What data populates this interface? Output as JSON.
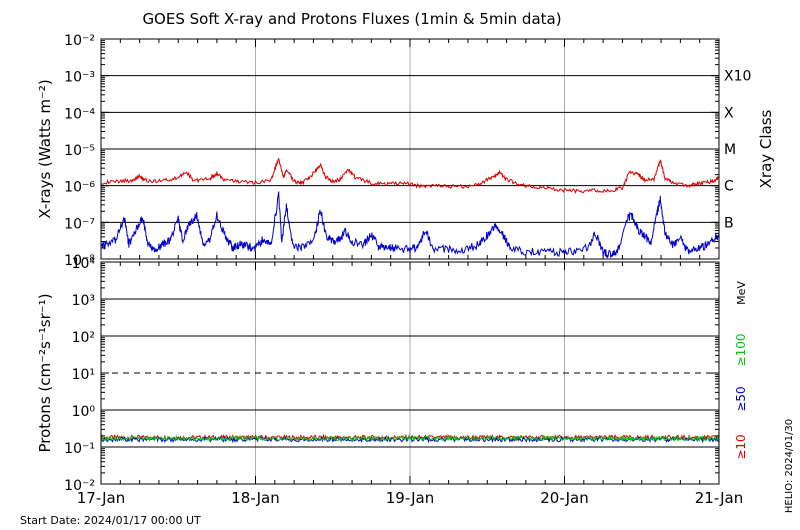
{
  "title": "GOES Soft X-ray and Protons Fluxes   (1min & 5min data)",
  "footer": {
    "start_date": "Start Date: 2024/01/17 00:00 UT",
    "credit": "HELIO: 2024/01/30"
  },
  "chart_data": [
    {
      "type": "line",
      "name": "xray-panel",
      "ylabel": "X-rays (Watts m⁻²)",
      "yscale": "log",
      "ylim": [
        1e-08,
        0.01
      ],
      "yticks": [
        "10⁻⁸",
        "10⁻⁷",
        "10⁻⁶",
        "10⁻⁵",
        "10⁻⁴",
        "10⁻³",
        "10⁻²"
      ],
      "class_axis_label": "Xray Class",
      "class_labels": [
        {
          "label": "B",
          "value": 1e-07
        },
        {
          "label": "C",
          "value": 1e-06
        },
        {
          "label": "M",
          "value": 1e-05
        },
        {
          "label": "X",
          "value": 0.0001
        },
        {
          "label": "X10",
          "value": 0.001
        }
      ],
      "x_days": [
        "17-Jan",
        "18-Jan",
        "19-Jan",
        "20-Jan",
        "21-Jan"
      ],
      "series": [
        {
          "color": "#dd0000",
          "points": [
            [
              0.0,
              1.2e-06
            ],
            [
              0.1,
              1.3e-06
            ],
            [
              0.2,
              1.4e-06
            ],
            [
              0.25,
              1.8e-06
            ],
            [
              0.3,
              1.3e-06
            ],
            [
              0.4,
              1.4e-06
            ],
            [
              0.5,
              1.6e-06
            ],
            [
              0.55,
              2.4e-06
            ],
            [
              0.6,
              1.4e-06
            ],
            [
              0.7,
              1.5e-06
            ],
            [
              0.75,
              2.2e-06
            ],
            [
              0.8,
              1.4e-06
            ],
            [
              0.9,
              1.3e-06
            ],
            [
              1.0,
              1.2e-06
            ],
            [
              1.1,
              1.4e-06
            ],
            [
              1.15,
              5.5e-06
            ],
            [
              1.18,
              1.6e-06
            ],
            [
              1.2,
              2.8e-06
            ],
            [
              1.25,
              1.3e-06
            ],
            [
              1.3,
              1.2e-06
            ],
            [
              1.35,
              1.6e-06
            ],
            [
              1.42,
              3.8e-06
            ],
            [
              1.45,
              1.8e-06
            ],
            [
              1.5,
              1.3e-06
            ],
            [
              1.55,
              1.5e-06
            ],
            [
              1.6,
              2.8e-06
            ],
            [
              1.65,
              1.6e-06
            ],
            [
              1.75,
              1.2e-06
            ],
            [
              1.85,
              1.1e-06
            ],
            [
              1.95,
              1.2e-06
            ],
            [
              2.05,
              1e-06
            ],
            [
              2.15,
              1e-06
            ],
            [
              2.25,
              9.5e-07
            ],
            [
              2.35,
              9.5e-07
            ],
            [
              2.45,
              1.1e-06
            ],
            [
              2.52,
              1.6e-06
            ],
            [
              2.58,
              2.2e-06
            ],
            [
              2.62,
              1.5e-06
            ],
            [
              2.7,
              1.1e-06
            ],
            [
              2.8,
              9e-07
            ],
            [
              2.9,
              8.5e-07
            ],
            [
              3.0,
              7.5e-07
            ],
            [
              3.1,
              7e-07
            ],
            [
              3.2,
              7.5e-07
            ],
            [
              3.3,
              7e-07
            ],
            [
              3.38,
              9e-07
            ],
            [
              3.42,
              2.4e-06
            ],
            [
              3.48,
              2e-06
            ],
            [
              3.52,
              1.4e-06
            ],
            [
              3.58,
              1.5e-06
            ],
            [
              3.62,
              5e-06
            ],
            [
              3.65,
              1.6e-06
            ],
            [
              3.7,
              1.2e-06
            ],
            [
              3.8,
              1e-06
            ],
            [
              3.85,
              1.1e-06
            ],
            [
              3.9,
              1.2e-06
            ],
            [
              3.95,
              1.3e-06
            ],
            [
              4.0,
              1.6e-06
            ]
          ]
        },
        {
          "color": "#0000cc",
          "points": [
            [
              0.0,
              2.2e-08
            ],
            [
              0.05,
              2.6e-08
            ],
            [
              0.1,
              3.5e-08
            ],
            [
              0.15,
              1.4e-07
            ],
            [
              0.18,
              2.5e-08
            ],
            [
              0.22,
              5.5e-08
            ],
            [
              0.27,
              1.4e-07
            ],
            [
              0.3,
              3e-08
            ],
            [
              0.35,
              1.8e-08
            ],
            [
              0.4,
              2.5e-08
            ],
            [
              0.45,
              3.5e-08
            ],
            [
              0.5,
              1.2e-07
            ],
            [
              0.53,
              3e-08
            ],
            [
              0.57,
              9e-08
            ],
            [
              0.62,
              1.5e-07
            ],
            [
              0.66,
              2.5e-08
            ],
            [
              0.7,
              3e-08
            ],
            [
              0.75,
              1.6e-07
            ],
            [
              0.8,
              4.5e-08
            ],
            [
              0.85,
              2e-08
            ],
            [
              0.9,
              2.5e-08
            ],
            [
              0.95,
              2.2e-08
            ],
            [
              1.0,
              2e-08
            ],
            [
              1.05,
              3.5e-08
            ],
            [
              1.1,
              2.5e-08
            ],
            [
              1.15,
              5.5e-07
            ],
            [
              1.17,
              3e-08
            ],
            [
              1.2,
              2.8e-07
            ],
            [
              1.24,
              2.5e-08
            ],
            [
              1.3,
              2e-08
            ],
            [
              1.38,
              3.5e-08
            ],
            [
              1.42,
              2.2e-07
            ],
            [
              1.46,
              4e-08
            ],
            [
              1.5,
              3e-08
            ],
            [
              1.55,
              3.5e-08
            ],
            [
              1.58,
              6e-08
            ],
            [
              1.62,
              3e-08
            ],
            [
              1.7,
              2.5e-08
            ],
            [
              1.75,
              4.5e-08
            ],
            [
              1.8,
              2e-08
            ],
            [
              1.85,
              2.2e-08
            ],
            [
              1.9,
              2e-08
            ],
            [
              2.0,
              1.8e-08
            ],
            [
              2.05,
              2.2e-08
            ],
            [
              2.1,
              6e-08
            ],
            [
              2.15,
              2e-08
            ],
            [
              2.25,
              1.8e-08
            ],
            [
              2.35,
              1.8e-08
            ],
            [
              2.45,
              2.5e-08
            ],
            [
              2.5,
              4.5e-08
            ],
            [
              2.55,
              7.5e-08
            ],
            [
              2.6,
              4.5e-08
            ],
            [
              2.65,
              2.2e-08
            ],
            [
              2.75,
              1.6e-08
            ],
            [
              2.85,
              1.5e-08
            ],
            [
              2.95,
              1.5e-08
            ],
            [
              3.05,
              1.6e-08
            ],
            [
              3.15,
              2e-08
            ],
            [
              3.2,
              5e-08
            ],
            [
              3.25,
              1.5e-08
            ],
            [
              3.3,
              1.3e-08
            ],
            [
              3.35,
              1.8e-08
            ],
            [
              3.4,
              1.3e-07
            ],
            [
              3.44,
              1.5e-07
            ],
            [
              3.48,
              6e-08
            ],
            [
              3.52,
              4e-08
            ],
            [
              3.56,
              3e-08
            ],
            [
              3.6,
              1.8e-07
            ],
            [
              3.62,
              4.5e-07
            ],
            [
              3.65,
              5e-08
            ],
            [
              3.7,
              2.5e-08
            ],
            [
              3.75,
              3.5e-08
            ],
            [
              3.8,
              1.6e-08
            ],
            [
              3.85,
              2e-08
            ],
            [
              3.9,
              2.2e-08
            ],
            [
              3.95,
              3e-08
            ],
            [
              4.0,
              4.5e-08
            ]
          ]
        }
      ]
    },
    {
      "type": "line",
      "name": "proton-panel",
      "ylabel": "Protons (cm⁻²s⁻¹sr⁻¹)",
      "yscale": "log",
      "ylim": [
        0.01,
        10000
      ],
      "yticks": [
        "10⁻²",
        "10⁻¹",
        "10⁰",
        "10¹",
        "10²",
        "10³",
        "10⁴"
      ],
      "threshold": 10,
      "unit_label": "MeV",
      "energy_labels": [
        {
          "label": "≥100",
          "color": "#00cc00"
        },
        {
          "label": "≥50",
          "color": "#0000cc"
        },
        {
          "label": "≥10",
          "color": "#dd0000"
        }
      ],
      "x_days": [
        "17-Jan",
        "18-Jan",
        "19-Jan",
        "20-Jan",
        "21-Jan"
      ],
      "series": [
        {
          "color": "#dd0000",
          "level": 0.18
        },
        {
          "color": "#0000cc",
          "level": 0.16
        },
        {
          "color": "#00cc00",
          "level": 0.17
        }
      ]
    }
  ]
}
